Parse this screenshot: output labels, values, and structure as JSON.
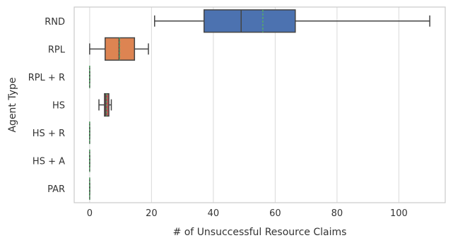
{
  "chart_data": {
    "type": "boxplot",
    "orientation": "horizontal",
    "title": "",
    "xlabel": "# of Unsuccessful Resource Claims",
    "ylabel": "Agent Type",
    "xlim": [
      -5,
      115
    ],
    "xticks": [
      0,
      20,
      40,
      60,
      80,
      100
    ],
    "grid": true,
    "categories": [
      "RND",
      "RPL",
      "RPL + R",
      "HS",
      "HS + R",
      "HS + A",
      "PAR"
    ],
    "boxes": [
      {
        "category": "RND",
        "whisker_low": 21,
        "q1": 37,
        "median": 49,
        "q3": 66.5,
        "whisker_high": 110,
        "mean": 56,
        "color": "#4c72b0"
      },
      {
        "category": "RPL",
        "whisker_low": 0,
        "q1": 5,
        "median": 9.5,
        "q3": 14.5,
        "whisker_high": 19,
        "mean": 9.7,
        "color": "#dd8452"
      },
      {
        "category": "RPL + R",
        "whisker_low": 0,
        "q1": 0,
        "median": 0,
        "q3": 0,
        "whisker_high": 0,
        "mean": 0,
        "color": "#55a868"
      },
      {
        "category": "HS",
        "whisker_low": 3,
        "q1": 4.8,
        "median": 5.2,
        "q3": 6.2,
        "whisker_high": 7,
        "mean": 5.5,
        "color": "#c44e52"
      },
      {
        "category": "HS + R",
        "whisker_low": 0,
        "q1": 0,
        "median": 0,
        "q3": 0,
        "whisker_high": 0,
        "mean": 0,
        "color": "#8172b3"
      },
      {
        "category": "HS + A",
        "whisker_low": 0,
        "q1": 0,
        "median": 0,
        "q3": 0,
        "whisker_high": 0,
        "mean": 0,
        "color": "#937860"
      },
      {
        "category": "PAR",
        "whisker_low": 0,
        "q1": 0,
        "median": 0,
        "q3": 0,
        "whisker_high": 0,
        "mean": 0,
        "color": "#da8bc3"
      }
    ],
    "mean_line_color": "#55a868"
  }
}
